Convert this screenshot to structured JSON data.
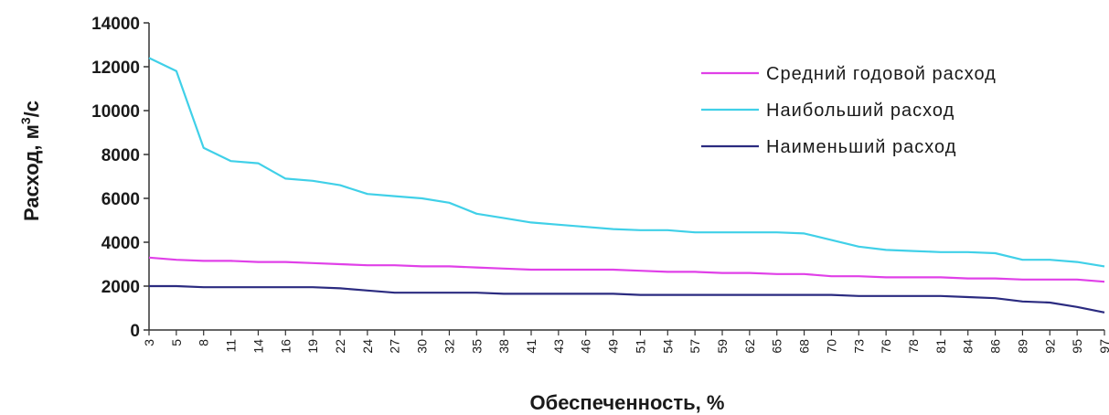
{
  "chart_data": {
    "type": "line",
    "title": "",
    "xlabel": "Обеспеченность, %",
    "ylabel": "Расход, м³/с",
    "ylabel_parts": {
      "before": "Расход, м",
      "sup": "3",
      "after": "/с"
    },
    "ylim": [
      0,
      14000
    ],
    "yticks": [
      0,
      2000,
      4000,
      6000,
      8000,
      10000,
      12000,
      14000
    ],
    "ytick_labels": [
      "0",
      "2000",
      "4000",
      "6000",
      "8000",
      "10000",
      "12000",
      "14000"
    ],
    "x": [
      "3",
      "5",
      "8",
      "11",
      "14",
      "16",
      "19",
      "22",
      "24",
      "27",
      "30",
      "32",
      "35",
      "38",
      "41",
      "43",
      "46",
      "49",
      "51",
      "54",
      "57",
      "59",
      "62",
      "65",
      "68",
      "70",
      "73",
      "76",
      "78",
      "81",
      "84",
      "86",
      "89",
      "92",
      "95",
      "97"
    ],
    "grid": false,
    "legend_position": "top-right",
    "series": [
      {
        "name": "Средний годовой расход",
        "color": "#e040e8",
        "values": [
          3300,
          3200,
          3150,
          3150,
          3100,
          3100,
          3050,
          3000,
          2950,
          2950,
          2900,
          2900,
          2850,
          2800,
          2750,
          2750,
          2750,
          2750,
          2700,
          2650,
          2650,
          2600,
          2600,
          2550,
          2550,
          2450,
          2450,
          2400,
          2400,
          2400,
          2350,
          2350,
          2300,
          2300,
          2300,
          2200
        ]
      },
      {
        "name": "Наибольший расход",
        "color": "#40d0e8",
        "values": [
          12400,
          11800,
          8300,
          7700,
          7600,
          6900,
          6800,
          6600,
          6200,
          6100,
          6000,
          5800,
          5300,
          5100,
          4900,
          4800,
          4700,
          4600,
          4550,
          4550,
          4450,
          4450,
          4450,
          4450,
          4400,
          4100,
          3800,
          3650,
          3600,
          3550,
          3550,
          3500,
          3200,
          3200,
          3100,
          2900
        ]
      },
      {
        "name": "Наименьший расход",
        "color": "#2b2b80",
        "values": [
          2000,
          2000,
          1950,
          1950,
          1950,
          1950,
          1950,
          1900,
          1800,
          1700,
          1700,
          1700,
          1700,
          1650,
          1650,
          1650,
          1650,
          1650,
          1600,
          1600,
          1600,
          1600,
          1600,
          1600,
          1600,
          1600,
          1550,
          1550,
          1550,
          1550,
          1500,
          1450,
          1300,
          1250,
          1050,
          800
        ]
      }
    ]
  }
}
